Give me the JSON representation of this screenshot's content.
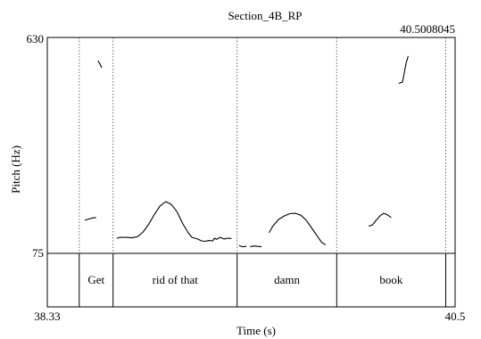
{
  "chart_data": {
    "type": "line",
    "title": "Section_4B_RP",
    "xlabel": "Time (s)",
    "ylabel": "Pitch (Hz)",
    "xlim": [
      38.33,
      40.5
    ],
    "ylim": [
      75,
      630
    ],
    "x_start_label": "38.33",
    "x_end_label": "40.5",
    "x_cursor_label": "40.5008045",
    "y_top_label": "630",
    "y_bottom_label": "75",
    "boundaries": [
      38.5,
      38.68,
      39.34,
      39.87,
      40.45
    ],
    "intervals": [
      {
        "start": 38.33,
        "end": 38.5,
        "text": ""
      },
      {
        "start": 38.5,
        "end": 38.68,
        "text": "Get"
      },
      {
        "start": 38.68,
        "end": 39.34,
        "text": "rid of that"
      },
      {
        "start": 39.34,
        "end": 39.87,
        "text": "damn"
      },
      {
        "start": 39.87,
        "end": 40.45,
        "text": "book"
      },
      {
        "start": 40.45,
        "end": 40.5,
        "text": ""
      }
    ],
    "series": [
      {
        "values": [
          [
            38.53,
            160
          ],
          [
            38.55,
            163
          ],
          [
            38.57,
            166
          ],
          [
            38.59,
            167
          ]
        ]
      },
      {
        "values": [
          [
            38.6,
            570
          ],
          [
            38.61,
            562
          ],
          [
            38.62,
            552
          ]
        ]
      },
      {
        "values": [
          [
            38.7,
            114
          ],
          [
            38.72,
            116
          ],
          [
            38.75,
            116
          ],
          [
            38.78,
            115
          ],
          [
            38.81,
            118
          ],
          [
            38.84,
            130
          ],
          [
            38.87,
            150
          ],
          [
            38.9,
            175
          ],
          [
            38.93,
            197
          ],
          [
            38.96,
            208
          ],
          [
            38.99,
            201
          ],
          [
            39.02,
            182
          ],
          [
            39.05,
            152
          ],
          [
            39.08,
            128
          ],
          [
            39.1,
            116
          ],
          [
            39.13,
            112
          ],
          [
            39.15,
            107
          ],
          [
            39.17,
            106
          ],
          [
            39.19,
            108
          ],
          [
            39.21,
            107
          ],
          [
            39.22,
            114
          ],
          [
            39.23,
            111
          ],
          [
            39.25,
            116
          ],
          [
            39.27,
            112
          ],
          [
            39.29,
            114
          ],
          [
            39.31,
            113
          ]
        ]
      },
      {
        "values": [
          [
            39.35,
            95
          ],
          [
            39.37,
            92
          ],
          [
            39.39,
            93
          ]
        ]
      },
      {
        "values": [
          [
            39.41,
            92
          ],
          [
            39.43,
            94
          ],
          [
            39.45,
            93
          ],
          [
            39.47,
            92
          ]
        ]
      },
      {
        "values": [
          [
            39.51,
            128
          ],
          [
            39.53,
            145
          ],
          [
            39.56,
            162
          ],
          [
            39.59,
            171
          ],
          [
            39.62,
            177
          ],
          [
            39.65,
            178
          ],
          [
            39.68,
            173
          ],
          [
            39.71,
            159
          ],
          [
            39.74,
            138
          ],
          [
            39.77,
            117
          ],
          [
            39.79,
            103
          ],
          [
            39.81,
            97
          ]
        ]
      },
      {
        "values": [
          [
            40.04,
            145
          ],
          [
            40.06,
            148
          ],
          [
            40.08,
            160
          ],
          [
            40.1,
            171
          ],
          [
            40.12,
            178
          ],
          [
            40.14,
            174
          ],
          [
            40.16,
            167
          ]
        ]
      },
      {
        "values": [
          [
            40.2,
            512
          ],
          [
            40.22,
            515
          ],
          [
            40.23,
            540
          ],
          [
            40.24,
            565
          ],
          [
            40.25,
            582
          ]
        ]
      }
    ]
  }
}
